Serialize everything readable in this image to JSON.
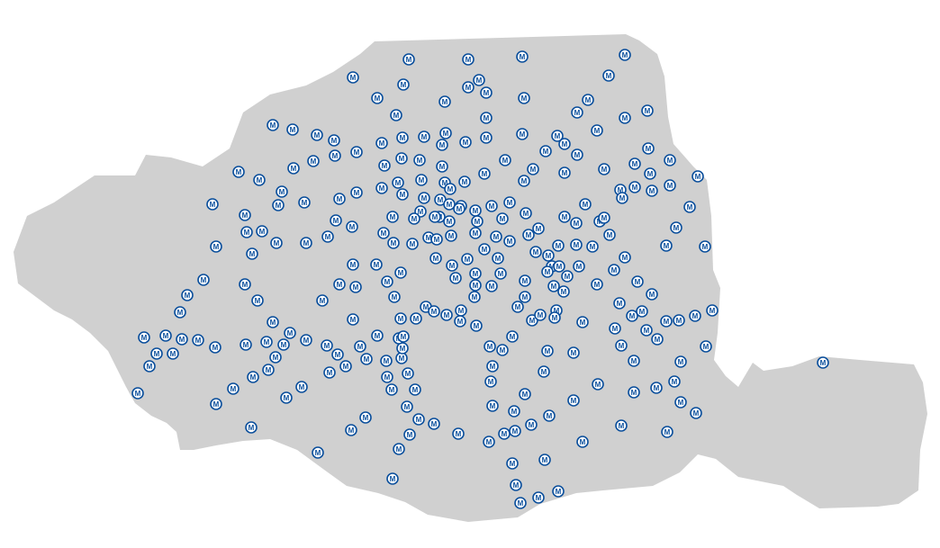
{
  "map": {
    "region_fill": "#d0d0d0",
    "station_marker_color": "#0b4f9c",
    "station_marker_fill": "#ffffff",
    "station_glyph": "M",
    "station_icon": "metro-station-icon",
    "station_count": 297
  }
}
